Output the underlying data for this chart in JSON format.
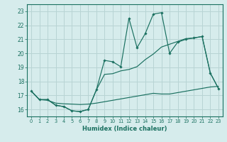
{
  "title": "",
  "xlabel": "Humidex (Indice chaleur)",
  "bg_color": "#d6ecec",
  "grid_color": "#b8d4d4",
  "line_color": "#1a7060",
  "xlim": [
    -0.5,
    23.5
  ],
  "ylim": [
    15.5,
    23.5
  ],
  "yticks": [
    16,
    17,
    18,
    19,
    20,
    21,
    22,
    23
  ],
  "xticks": [
    0,
    1,
    2,
    3,
    4,
    5,
    6,
    7,
    8,
    9,
    10,
    11,
    12,
    13,
    14,
    15,
    16,
    17,
    18,
    19,
    20,
    21,
    22,
    23
  ],
  "line1_x": [
    0,
    1,
    2,
    3,
    4,
    5,
    6,
    7,
    8,
    9,
    10,
    11,
    12,
    13,
    14,
    15,
    16,
    17,
    18,
    19,
    20,
    21,
    22,
    23
  ],
  "line1_y": [
    17.3,
    16.7,
    16.7,
    16.3,
    16.2,
    15.9,
    15.85,
    16.0,
    17.4,
    19.5,
    19.4,
    19.05,
    22.5,
    20.4,
    21.4,
    22.8,
    22.9,
    20.0,
    20.8,
    21.0,
    21.1,
    21.2,
    18.6,
    17.5
  ],
  "line2_x": [
    0,
    1,
    2,
    3,
    4,
    5,
    6,
    7,
    8,
    9,
    10,
    11,
    12,
    13,
    14,
    15,
    16,
    17,
    18,
    19,
    20,
    21,
    22,
    23
  ],
  "line2_y": [
    17.3,
    16.7,
    16.7,
    16.3,
    16.2,
    15.9,
    15.85,
    16.0,
    17.4,
    18.5,
    18.55,
    18.75,
    18.85,
    19.05,
    19.55,
    19.95,
    20.45,
    20.65,
    20.85,
    21.05,
    21.1,
    21.2,
    18.6,
    17.5
  ],
  "line3_x": [
    0,
    1,
    2,
    3,
    4,
    5,
    6,
    7,
    8,
    9,
    10,
    11,
    12,
    13,
    14,
    15,
    16,
    17,
    18,
    19,
    20,
    21,
    22,
    23
  ],
  "line3_y": [
    17.3,
    16.7,
    16.65,
    16.45,
    16.4,
    16.38,
    16.35,
    16.38,
    16.45,
    16.55,
    16.65,
    16.75,
    16.85,
    16.95,
    17.05,
    17.15,
    17.1,
    17.1,
    17.2,
    17.3,
    17.4,
    17.5,
    17.6,
    17.65
  ]
}
